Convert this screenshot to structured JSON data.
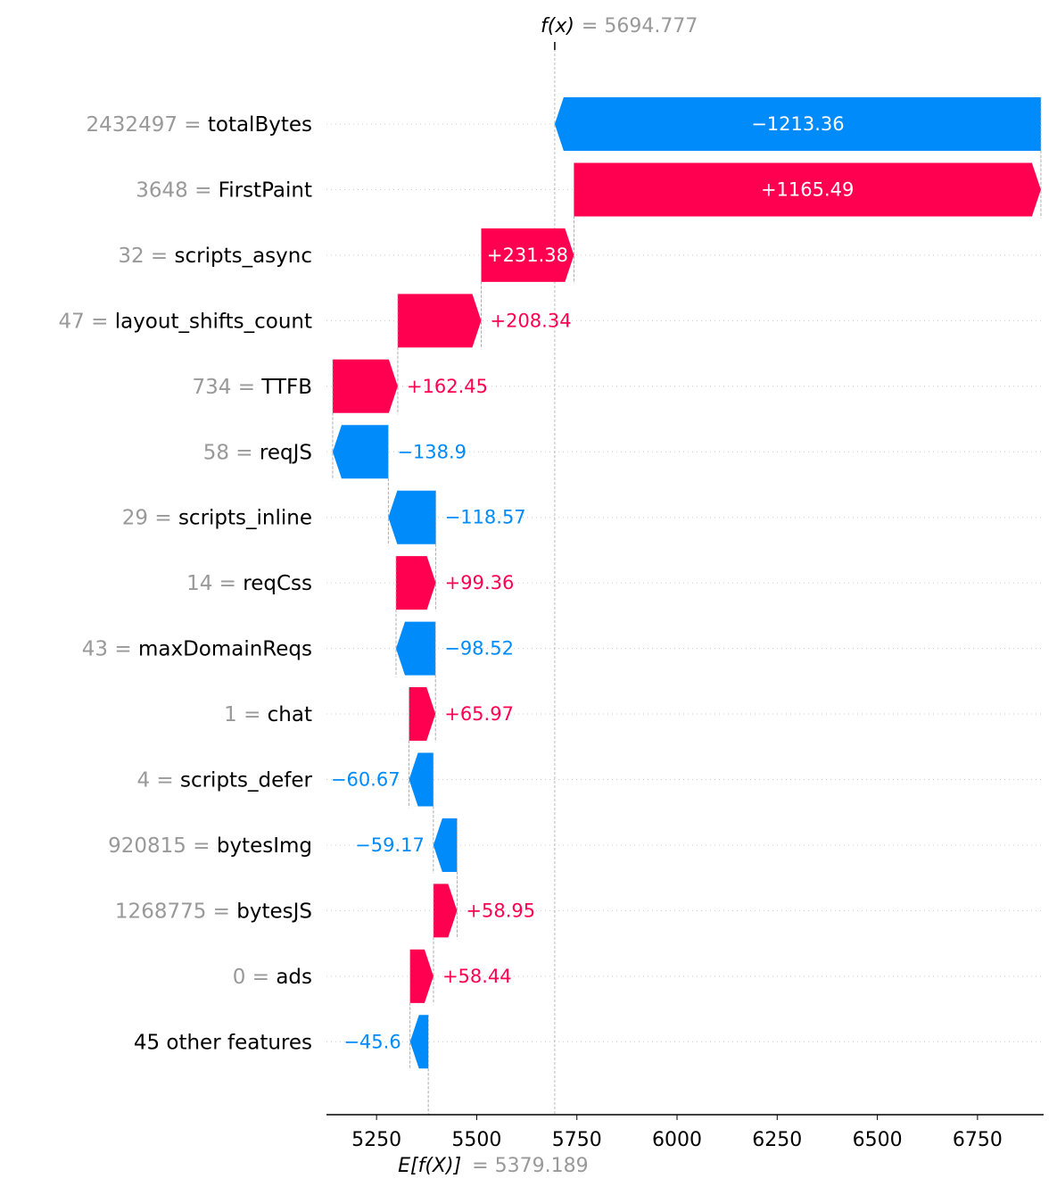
{
  "chart_data": {
    "type": "waterfall",
    "base_value": 5379.189,
    "output_value": 5694.777,
    "base_label": "E[f(X)]",
    "output_label": "f(x)",
    "base_value_text": "= 5379.189",
    "output_value_text": "= 5694.777",
    "xlim": [
      5125,
      6915
    ],
    "xticks": [
      5250,
      5500,
      5750,
      6000,
      6250,
      6500,
      6750
    ],
    "xtick_labels": [
      "5250",
      "5500",
      "5750",
      "6000",
      "6250",
      "6500",
      "6750"
    ],
    "colors": {
      "positive": "#ff0051",
      "negative": "#008bfb",
      "muted": "#999999"
    },
    "features": [
      {
        "value": "2432497",
        "name": "totalBytes",
        "shap": -1213.36,
        "label": "−1213.36"
      },
      {
        "value": "3648",
        "name": "FirstPaint",
        "shap": 1165.49,
        "label": "+1165.49"
      },
      {
        "value": "32",
        "name": "scripts_async",
        "shap": 231.38,
        "label": "+231.38"
      },
      {
        "value": "47",
        "name": "layout_shifts_count",
        "shap": 208.34,
        "label": "+208.34"
      },
      {
        "value": "734",
        "name": "TTFB",
        "shap": 162.45,
        "label": "+162.45"
      },
      {
        "value": "58",
        "name": "reqJS",
        "shap": -138.9,
        "label": "−138.9"
      },
      {
        "value": "29",
        "name": "scripts_inline",
        "shap": -118.57,
        "label": "−118.57"
      },
      {
        "value": "14",
        "name": "reqCss",
        "shap": 99.36,
        "label": "+99.36"
      },
      {
        "value": "43",
        "name": "maxDomainReqs",
        "shap": -98.52,
        "label": "−98.52"
      },
      {
        "value": "1",
        "name": "chat",
        "shap": 65.97,
        "label": "+65.97"
      },
      {
        "value": "4",
        "name": "scripts_defer",
        "shap": -60.67,
        "label": "−60.67"
      },
      {
        "value": "920815",
        "name": "bytesImg",
        "shap": -59.17,
        "label": "−59.17"
      },
      {
        "value": "1268775",
        "name": "bytesJS",
        "shap": 58.95,
        "label": "+58.95"
      },
      {
        "value": "0",
        "name": "ads",
        "shap": 58.44,
        "label": "+58.44"
      },
      {
        "value": "",
        "name": "45 other features",
        "shap": -45.6,
        "label": "−45.6"
      }
    ]
  }
}
